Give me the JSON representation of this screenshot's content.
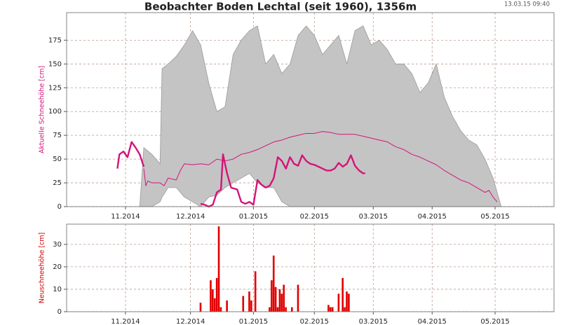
{
  "chart_data": [
    {
      "type": "line",
      "title": "Beobachter Boden Lechtal (seit 1960), 1356m",
      "timestamp": "13.03.15 09:40",
      "y_label": "Aktuelle Schneehöhe [cm]",
      "y_label_color": "#d4147a",
      "xlim": [
        0,
        240
      ],
      "xticks": [
        {
          "value": 29,
          "label": "11.2014"
        },
        {
          "value": 61,
          "label": "12.2014"
        },
        {
          "value": 92,
          "label": "01.2015"
        },
        {
          "value": 122,
          "label": "02.2015"
        },
        {
          "value": 151,
          "label": "03.2015"
        },
        {
          "value": 180,
          "label": "04.2015"
        },
        {
          "value": 211,
          "label": "05.2015"
        }
      ],
      "ylim": [
        0,
        204
      ],
      "yticks": [
        0,
        25,
        50,
        75,
        100,
        125,
        150,
        175
      ],
      "grid": true,
      "series": [
        {
          "kind": "band",
          "color": "#c4c4c4",
          "stroke": "#9a9a9a",
          "x": [
            36,
            38,
            42,
            46,
            47,
            50,
            54,
            58,
            62,
            66,
            70,
            74,
            78,
            82,
            86,
            90,
            94,
            98,
            102,
            106,
            110,
            114,
            118,
            122,
            126,
            130,
            134,
            138,
            142,
            146,
            150,
            154,
            158,
            162,
            166,
            170,
            174,
            178,
            182,
            186,
            190,
            194,
            198,
            202,
            206,
            210,
            214
          ],
          "values": [
            0,
            62,
            55,
            45,
            145,
            150,
            158,
            170,
            185,
            170,
            130,
            100,
            105,
            160,
            175,
            185,
            190,
            150,
            160,
            140,
            150,
            180,
            190,
            180,
            160,
            170,
            180,
            150,
            185,
            190,
            170,
            175,
            165,
            150,
            150,
            140,
            120,
            130,
            150,
            115,
            95,
            80,
            70,
            65,
            50,
            30,
            0
          ],
          "lower": [
            0,
            0,
            0,
            5,
            10,
            20,
            20,
            10,
            5,
            0,
            10,
            12,
            20,
            25,
            30,
            35,
            25,
            20,
            20,
            5,
            0,
            0,
            0,
            0,
            0,
            0,
            0,
            0,
            0,
            0,
            0,
            0,
            0,
            0,
            0,
            0,
            0,
            0,
            0,
            0,
            0,
            0,
            0,
            0,
            0,
            0,
            0
          ]
        },
        {
          "kind": "line",
          "color": "#d4147a",
          "width": 1,
          "x": [
            38,
            39,
            40,
            42,
            46,
            48,
            50,
            54,
            56,
            58,
            62,
            66,
            70,
            74,
            78,
            82,
            86,
            90,
            94,
            98,
            102,
            106,
            110,
            114,
            118,
            122,
            126,
            130,
            134,
            138,
            142,
            146,
            150,
            154,
            158,
            162,
            166,
            170,
            174,
            178,
            182,
            186,
            190,
            194,
            198,
            202,
            206,
            208,
            210,
            212
          ],
          "values": [
            40,
            22,
            27,
            25,
            25,
            22,
            30,
            28,
            38,
            45,
            44,
            45,
            44,
            50,
            48,
            50,
            55,
            57,
            60,
            64,
            68,
            70,
            73,
            75,
            77,
            77,
            79,
            78,
            76,
            76,
            76,
            74,
            72,
            70,
            68,
            63,
            60,
            55,
            52,
            48,
            44,
            38,
            33,
            28,
            25,
            20,
            15,
            17,
            10,
            5
          ]
        },
        {
          "kind": "line",
          "color": "#d4147a",
          "width": 2.4,
          "x": [
            25,
            26,
            28,
            30,
            32,
            34,
            36,
            38,
            39,
            66,
            68,
            70,
            72,
            74,
            76,
            77,
            79,
            81,
            84,
            86,
            88,
            90,
            92,
            94,
            96,
            98,
            100,
            102,
            104,
            106,
            108,
            110,
            112,
            114,
            116,
            118,
            120,
            122,
            124,
            126,
            128,
            130,
            132,
            134,
            136,
            138,
            140,
            142,
            144,
            146,
            147
          ],
          "values": [
            40,
            55,
            58,
            52,
            68,
            62,
            55,
            42,
            null,
            3,
            2,
            0,
            2,
            15,
            18,
            55,
            35,
            20,
            18,
            5,
            3,
            5,
            2,
            28,
            23,
            20,
            22,
            30,
            52,
            48,
            40,
            52,
            45,
            43,
            54,
            48,
            45,
            44,
            42,
            40,
            38,
            38,
            40,
            46,
            42,
            45,
            54,
            43,
            38,
            35,
            35
          ]
        }
      ]
    },
    {
      "type": "bar",
      "y_label": "Neuschneehöhe [cm]",
      "y_label_color": "#cc0000",
      "xlim": [
        0,
        240
      ],
      "xticks": [
        {
          "value": 29,
          "label": "11.2014"
        },
        {
          "value": 61,
          "label": "12.2014"
        },
        {
          "value": 92,
          "label": "01.2015"
        },
        {
          "value": 122,
          "label": "02.2015"
        },
        {
          "value": 151,
          "label": "03.2015"
        },
        {
          "value": 180,
          "label": "04.2015"
        },
        {
          "value": 211,
          "label": "05.2015"
        }
      ],
      "ylim": [
        0,
        39
      ],
      "yticks": [
        0,
        10,
        20,
        30
      ],
      "grid": true,
      "color": "#e00000",
      "x": [
        66,
        71,
        72,
        73,
        74,
        75,
        76,
        79,
        87,
        90,
        91,
        93,
        100,
        101,
        102,
        103,
        104,
        105,
        106,
        107,
        108,
        111,
        114,
        129,
        130,
        131,
        134,
        136,
        137,
        138,
        139
      ],
      "values": [
        4,
        14,
        10,
        6,
        15,
        38,
        2,
        5,
        7,
        9,
        5,
        18,
        2,
        14,
        25,
        11,
        2,
        10,
        8,
        12,
        2,
        2,
        12,
        3,
        2,
        2,
        8,
        15,
        2,
        9,
        8
      ]
    }
  ]
}
